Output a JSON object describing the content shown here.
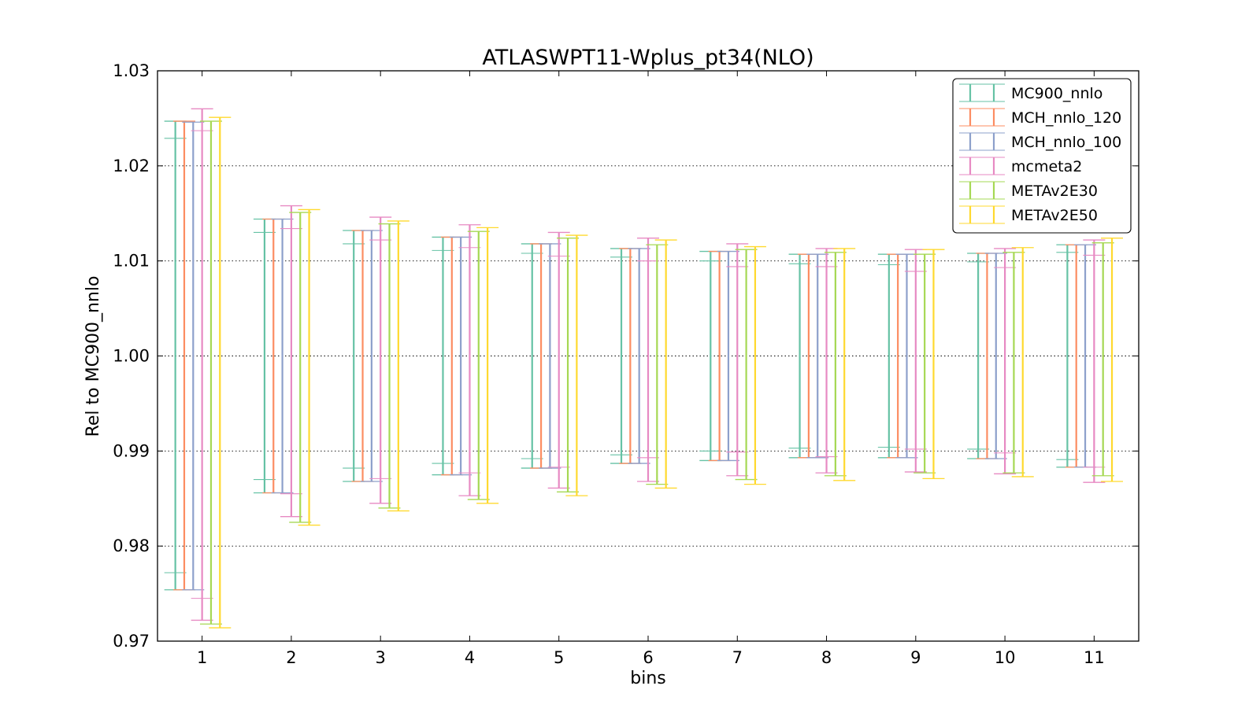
{
  "chart_data": {
    "type": "errorbar",
    "title": "ATLASWPT11-Wplus_pt34(NLO)",
    "xlabel": "bins",
    "ylabel": "Rel to MC900_nnlo",
    "categories": [
      "1",
      "2",
      "3",
      "4",
      "5",
      "6",
      "7",
      "8",
      "9",
      "10",
      "11"
    ],
    "ylim": [
      0.97,
      1.03
    ],
    "yticks": [
      "0.97",
      "0.98",
      "0.99",
      "1.00",
      "1.01",
      "1.02",
      "1.03"
    ],
    "grid": "horizontal dotted",
    "legend_position": "top-right",
    "series": [
      {
        "name": "MC900_nnlo",
        "color": "#66c2a5",
        "lo": [
          0.9754,
          0.9856,
          0.9868,
          0.9875,
          0.9882,
          0.9887,
          0.989,
          0.9893,
          0.9893,
          0.9892,
          0.9883
        ],
        "hi": [
          1.0247,
          1.0144,
          1.0132,
          1.0125,
          1.0118,
          1.0113,
          1.011,
          1.0107,
          1.0107,
          1.0108,
          1.0117
        ],
        "inner_lo": [
          0.9772,
          0.987,
          0.9882,
          0.9887,
          0.9892,
          0.9896,
          0.99,
          0.9903,
          0.9904,
          0.9902,
          0.9891
        ],
        "inner_hi": [
          1.0229,
          1.013,
          1.0118,
          1.0111,
          1.0108,
          1.0104,
          1.01,
          1.0097,
          1.0096,
          1.0099,
          1.0109
        ]
      },
      {
        "name": "MCH_nnlo_120",
        "color": "#fc8d62",
        "lo": [
          0.9754,
          0.9856,
          0.9868,
          0.9875,
          0.9882,
          0.9887,
          0.989,
          0.9893,
          0.9893,
          0.9892,
          0.9883
        ],
        "hi": [
          1.0247,
          1.0144,
          1.0132,
          1.0125,
          1.0118,
          1.0113,
          1.011,
          1.0107,
          1.0107,
          1.0108,
          1.0117
        ]
      },
      {
        "name": "MCH_nnlo_100",
        "color": "#8da0cb",
        "lo": [
          0.9754,
          0.9856,
          0.9868,
          0.9875,
          0.9882,
          0.9887,
          0.989,
          0.9893,
          0.9893,
          0.9892,
          0.9883
        ],
        "hi": [
          1.0246,
          1.0144,
          1.0132,
          1.0125,
          1.0118,
          1.0113,
          1.011,
          1.0107,
          1.0107,
          1.0108,
          1.0117
        ]
      },
      {
        "name": "mcmeta2",
        "color": "#e78ac3",
        "lo": [
          0.9722,
          0.9831,
          0.9845,
          0.9853,
          0.9861,
          0.9868,
          0.9874,
          0.9877,
          0.9878,
          0.9876,
          0.9867
        ],
        "hi": [
          1.026,
          1.0158,
          1.0146,
          1.0138,
          1.013,
          1.0124,
          1.0118,
          1.0113,
          1.0112,
          1.0113,
          1.0122
        ],
        "inner_lo": [
          0.9745,
          0.9855,
          0.9871,
          0.9877,
          0.9883,
          0.9893,
          0.9899,
          0.9894,
          0.9902,
          0.9898,
          0.9883
        ],
        "inner_hi": [
          1.0237,
          1.0134,
          1.0122,
          1.0114,
          1.0105,
          1.01,
          1.0094,
          1.0094,
          1.0089,
          1.0093,
          1.0106
        ]
      },
      {
        "name": "METAv2E30",
        "color": "#a6d854",
        "lo": [
          0.9718,
          0.9825,
          0.984,
          0.9849,
          0.9857,
          0.9865,
          0.987,
          0.9874,
          0.9877,
          0.9877,
          0.9874
        ],
        "hi": [
          1.0247,
          1.0151,
          1.0139,
          1.0131,
          1.0124,
          1.0117,
          1.0112,
          1.0109,
          1.0107,
          1.0109,
          1.0119
        ]
      },
      {
        "name": "METAv2E50",
        "color": "#ffd92f",
        "lo": [
          0.9714,
          0.9822,
          0.9837,
          0.9845,
          0.9853,
          0.9861,
          0.9865,
          0.9869,
          0.9871,
          0.9873,
          0.9868
        ],
        "hi": [
          1.0251,
          1.0154,
          1.0142,
          1.0135,
          1.0127,
          1.0122,
          1.0115,
          1.0113,
          1.0112,
          1.0114,
          1.0124
        ]
      }
    ]
  }
}
